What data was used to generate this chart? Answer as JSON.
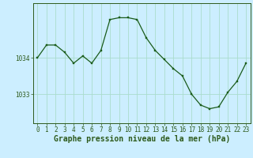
{
  "x": [
    0,
    1,
    2,
    3,
    4,
    5,
    6,
    7,
    8,
    9,
    10,
    11,
    12,
    13,
    14,
    15,
    16,
    17,
    18,
    19,
    20,
    21,
    22,
    23
  ],
  "y": [
    1034.0,
    1034.35,
    1034.35,
    1034.15,
    1033.85,
    1034.05,
    1033.85,
    1034.2,
    1035.05,
    1035.1,
    1035.1,
    1035.05,
    1034.55,
    1034.2,
    1033.95,
    1033.7,
    1033.5,
    1033.0,
    1032.7,
    1032.6,
    1032.65,
    1033.05,
    1033.35,
    1033.85
  ],
  "line_color": "#1a5c1a",
  "marker_color": "#1a5c1a",
  "bg_color": "#cceeff",
  "grid_color": "#aaddcc",
  "xlabel_label": "Graphe pression niveau de la mer (hPa)",
  "yticks": [
    1033.0,
    1034.0
  ],
  "xticks": [
    0,
    1,
    2,
    3,
    4,
    5,
    6,
    7,
    8,
    9,
    10,
    11,
    12,
    13,
    14,
    15,
    16,
    17,
    18,
    19,
    20,
    21,
    22,
    23
  ],
  "ylim": [
    1032.2,
    1035.5
  ],
  "xlim": [
    -0.5,
    23.5
  ],
  "figsize": [
    3.2,
    2.0
  ],
  "dpi": 100,
  "axis_color": "#2d5a1b",
  "tick_fontsize": 5.5,
  "label_fontsize": 7.0
}
